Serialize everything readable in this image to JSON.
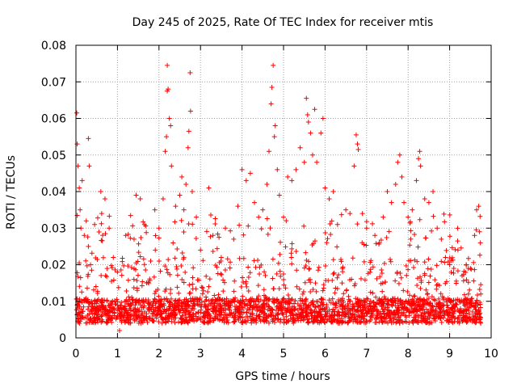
{
  "chart_data": {
    "type": "scatter",
    "title": "Day 245 of 2025, Rate Of TEC Index for receiver mtis",
    "xlabel": "GPS time / hours",
    "ylabel": "ROTI / TECUs",
    "xlim": [
      0,
      10
    ],
    "ylim": [
      0,
      0.08
    ],
    "x_ticks": [
      "0",
      "1",
      "2",
      "3",
      "4",
      "5",
      "6",
      "7",
      "8",
      "9",
      "10"
    ],
    "y_ticks": [
      "0",
      "0.01",
      "0.02",
      "0.03",
      "0.04",
      "0.05",
      "0.06",
      "0.07",
      "0.08"
    ],
    "x_tick_values": [
      0,
      1,
      2,
      3,
      4,
      5,
      6,
      7,
      8,
      9,
      10
    ],
    "y_tick_values": [
      0,
      0.01,
      0.02,
      0.03,
      0.04,
      0.05,
      0.06,
      0.07,
      0.08
    ],
    "grid": true,
    "marker": "+",
    "series": [
      {
        "name": "ROTI",
        "color": "#ff0000",
        "points": [
          [
            0.02,
            0.0615
          ],
          [
            0.03,
            0.053
          ],
          [
            0.05,
            0.047
          ],
          [
            0.08,
            0.041
          ],
          [
            0.1,
            0.035
          ],
          [
            0.12,
            0.03
          ],
          [
            0.15,
            0.043
          ],
          [
            0.2,
            0.028
          ],
          [
            0.3,
            0.025
          ],
          [
            0.3,
            0.0545
          ],
          [
            0.32,
            0.047
          ],
          [
            0.35,
            0.02
          ],
          [
            0.45,
            0.031
          ],
          [
            0.6,
            0.04
          ],
          [
            0.62,
            0.034
          ],
          [
            0.7,
            0.038
          ],
          [
            0.8,
            0.03
          ],
          [
            0.9,
            0.022
          ],
          [
            1.0,
            0.018
          ],
          [
            1.05,
            0.002
          ],
          [
            1.2,
            0.028
          ],
          [
            1.4,
            0.027
          ],
          [
            1.45,
            0.039
          ],
          [
            1.55,
            0.038
          ],
          [
            1.65,
            0.031
          ],
          [
            1.8,
            0.021
          ],
          [
            1.9,
            0.035
          ],
          [
            2.0,
            0.03
          ],
          [
            2.1,
            0.038
          ],
          [
            2.15,
            0.051
          ],
          [
            2.18,
            0.055
          ],
          [
            2.2,
            0.0675
          ],
          [
            2.2,
            0.0745
          ],
          [
            2.22,
            0.068
          ],
          [
            2.25,
            0.06
          ],
          [
            2.28,
            0.058
          ],
          [
            2.3,
            0.047
          ],
          [
            2.4,
            0.036
          ],
          [
            2.5,
            0.039
          ],
          [
            2.55,
            0.044
          ],
          [
            2.6,
            0.035
          ],
          [
            2.65,
            0.042
          ],
          [
            2.7,
            0.052
          ],
          [
            2.72,
            0.0565
          ],
          [
            2.75,
            0.0725
          ],
          [
            2.76,
            0.062
          ],
          [
            2.8,
            0.04
          ],
          [
            2.9,
            0.033
          ],
          [
            3.0,
            0.024
          ],
          [
            3.2,
            0.041
          ],
          [
            3.3,
            0.028
          ],
          [
            3.5,
            0.022
          ],
          [
            3.6,
            0.03
          ],
          [
            3.8,
            0.027
          ],
          [
            3.9,
            0.036
          ],
          [
            4.0,
            0.046
          ],
          [
            4.1,
            0.043
          ],
          [
            4.2,
            0.045
          ],
          [
            4.3,
            0.037
          ],
          [
            4.4,
            0.033
          ],
          [
            4.5,
            0.035
          ],
          [
            4.6,
            0.042
          ],
          [
            4.65,
            0.051
          ],
          [
            4.7,
            0.064
          ],
          [
            4.72,
            0.0685
          ],
          [
            4.75,
            0.0745
          ],
          [
            4.78,
            0.055
          ],
          [
            4.8,
            0.058
          ],
          [
            4.85,
            0.046
          ],
          [
            4.9,
            0.039
          ],
          [
            5.0,
            0.033
          ],
          [
            5.1,
            0.044
          ],
          [
            5.2,
            0.043
          ],
          [
            5.3,
            0.046
          ],
          [
            5.4,
            0.052
          ],
          [
            5.5,
            0.048
          ],
          [
            5.55,
            0.0655
          ],
          [
            5.58,
            0.061
          ],
          [
            5.6,
            0.059
          ],
          [
            5.65,
            0.056
          ],
          [
            5.7,
            0.05
          ],
          [
            5.75,
            0.0625
          ],
          [
            5.8,
            0.048
          ],
          [
            5.9,
            0.056
          ],
          [
            5.95,
            0.06
          ],
          [
            6.0,
            0.041
          ],
          [
            6.1,
            0.038
          ],
          [
            6.2,
            0.04
          ],
          [
            6.3,
            0.031
          ],
          [
            6.5,
            0.035
          ],
          [
            6.6,
            0.034
          ],
          [
            6.7,
            0.047
          ],
          [
            6.75,
            0.0555
          ],
          [
            6.78,
            0.053
          ],
          [
            6.8,
            0.0515
          ],
          [
            6.9,
            0.034
          ],
          [
            7.0,
            0.03
          ],
          [
            7.2,
            0.028
          ],
          [
            7.4,
            0.033
          ],
          [
            7.5,
            0.04
          ],
          [
            7.6,
            0.037
          ],
          [
            7.7,
            0.042
          ],
          [
            7.75,
            0.048
          ],
          [
            7.8,
            0.05
          ],
          [
            7.85,
            0.044
          ],
          [
            7.9,
            0.037
          ],
          [
            8.0,
            0.033
          ],
          [
            8.1,
            0.035
          ],
          [
            8.2,
            0.043
          ],
          [
            8.25,
            0.049
          ],
          [
            8.28,
            0.051
          ],
          [
            8.3,
            0.047
          ],
          [
            8.4,
            0.038
          ],
          [
            8.5,
            0.037
          ],
          [
            8.6,
            0.04
          ],
          [
            8.7,
            0.03
          ],
          [
            8.8,
            0.027
          ],
          [
            8.9,
            0.022
          ],
          [
            9.0,
            0.02
          ],
          [
            9.1,
            0.019
          ],
          [
            9.2,
            0.024
          ],
          [
            9.3,
            0.017
          ],
          [
            9.4,
            0.02
          ],
          [
            9.5,
            0.019
          ],
          [
            9.6,
            0.028
          ],
          [
            9.65,
            0.035
          ],
          [
            9.7,
            0.036
          ],
          [
            9.72,
            0.029
          ],
          [
            9.74,
            0.026
          ],
          [
            9.75,
            0.012
          ],
          [
            9.75,
            0.004
          ]
        ],
        "dense_band": [
          {
            "x_start": 0.0,
            "x_end": 9.75,
            "y_low": 0.004,
            "y_high": 0.022,
            "typical": 0.009
          }
        ]
      }
    ]
  }
}
